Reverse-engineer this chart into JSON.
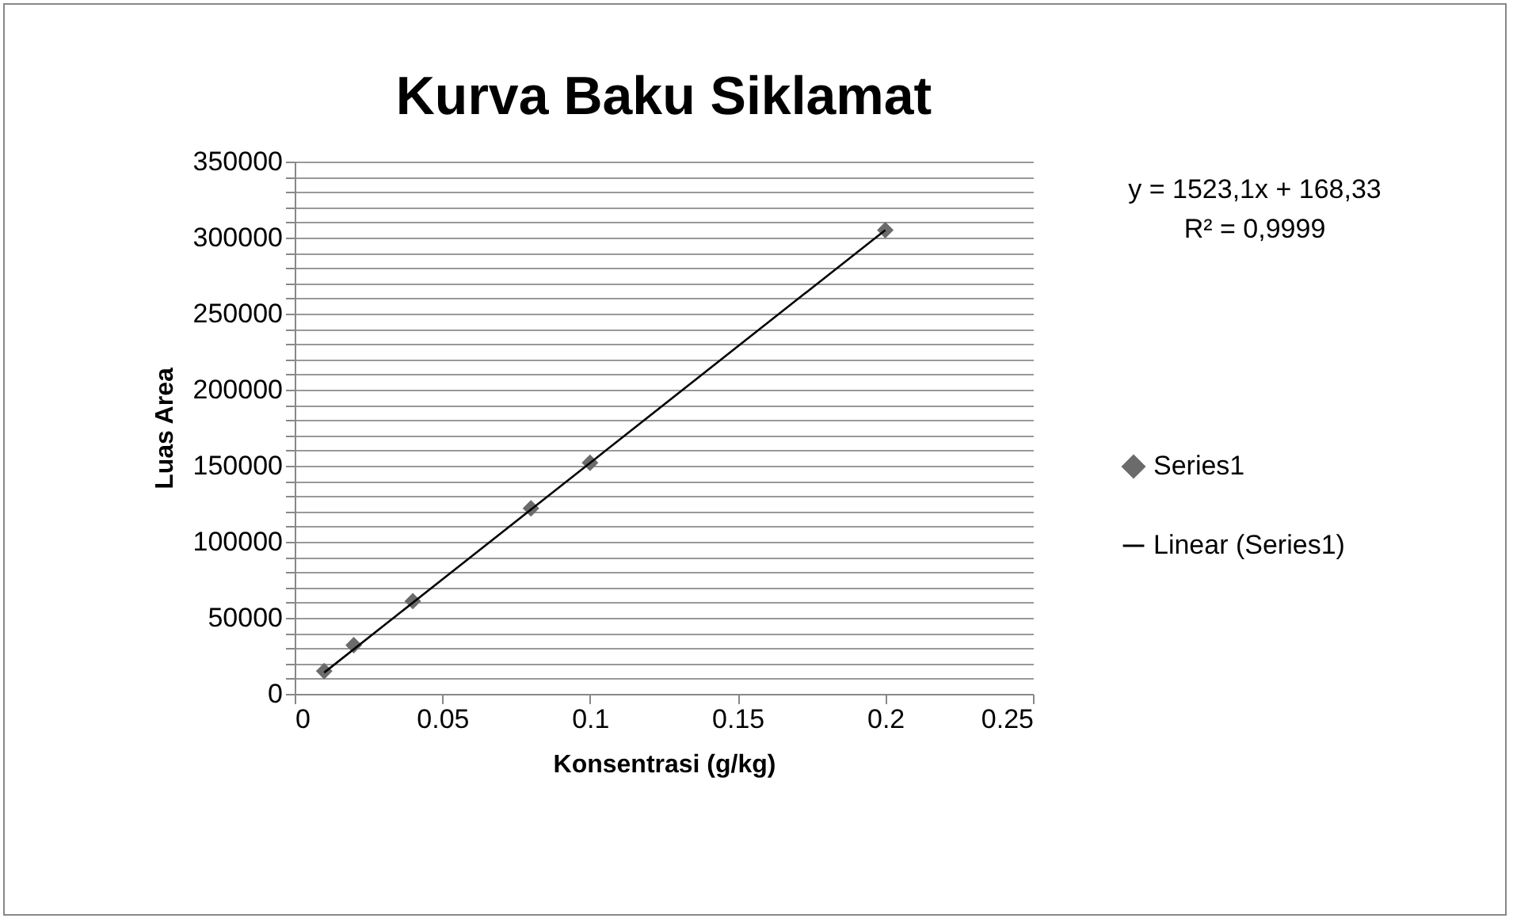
{
  "chart_data": {
    "type": "scatter",
    "title": "Kurva Baku Siklamat",
    "xlabel": "Konsentrasi (g/kg)",
    "ylabel": "Luas Area",
    "xlim": [
      0,
      0.25
    ],
    "xticks": [
      0,
      0.05,
      0.1,
      0.15,
      0.2,
      0.25
    ],
    "ylim": [
      0,
      350000
    ],
    "yticks": [
      0,
      {
        "value": 10000,
        "label": null
      },
      {
        "value": 20000,
        "label": null
      },
      {
        "value": 30000,
        "label": null
      },
      {
        "value": 40000,
        "label": null
      },
      50000,
      {
        "value": 60000,
        "label": null
      },
      {
        "value": 70000,
        "label": null
      },
      {
        "value": 80000,
        "label": null
      },
      {
        "value": 90000,
        "label": null
      },
      100000,
      {
        "value": 110000,
        "label": null
      },
      {
        "value": 120000,
        "label": null
      },
      {
        "value": 130000,
        "label": null
      },
      {
        "value": 140000,
        "label": null
      },
      150000,
      {
        "value": 160000,
        "label": null
      },
      {
        "value": 170000,
        "label": null
      },
      {
        "value": 180000,
        "label": null
      },
      {
        "value": 190000,
        "label": null
      },
      200000,
      {
        "value": 210000,
        "label": null
      },
      {
        "value": 220000,
        "label": null
      },
      {
        "value": 230000,
        "label": null
      },
      {
        "value": 240000,
        "label": null
      },
      250000,
      {
        "value": 260000,
        "label": null
      },
      {
        "value": 270000,
        "label": null
      },
      {
        "value": 280000,
        "label": null
      },
      {
        "value": 290000,
        "label": null
      },
      300000,
      {
        "value": 310000,
        "label": null
      },
      {
        "value": 320000,
        "label": null
      },
      {
        "value": 330000,
        "label": null
      },
      {
        "value": 340000,
        "label": null
      },
      350000
    ],
    "grid": "y",
    "legend": "right",
    "annotations": [
      "y = 1523,1x + 168,33",
      "R² = 0,9999"
    ],
    "series": [
      {
        "name": "Series1",
        "marker": "diamond",
        "color": "#6b6b6b",
        "x": [
          0.01,
          0.02,
          0.04,
          0.08,
          0.1,
          0.2
        ],
        "values": [
          15000,
          32000,
          61000,
          122000,
          152000,
          305000
        ]
      },
      {
        "name": "Linear (Series1)",
        "type": "line",
        "color": "#000000",
        "x": [
          0.01,
          0.2
        ],
        "values": [
          14000,
          305000
        ]
      }
    ]
  }
}
